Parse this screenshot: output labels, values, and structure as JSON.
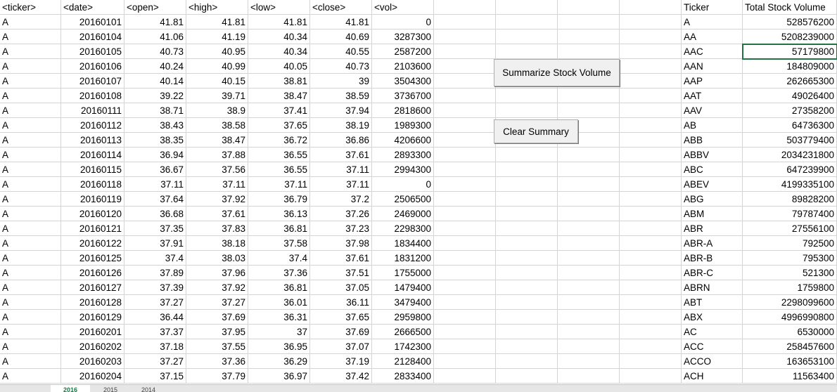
{
  "headers": [
    "<ticker>",
    "<date>",
    "<open>",
    "<high>",
    "<low>",
    "<close>",
    "<vol>"
  ],
  "summary_headers": [
    "Ticker",
    "Total Stock Volume"
  ],
  "buttons": {
    "summarize": "Summarize Stock Volume",
    "clear": "Clear Summary"
  },
  "rows": [
    [
      "A",
      "20160101",
      "41.81",
      "41.81",
      "41.81",
      "41.81",
      "0"
    ],
    [
      "A",
      "20160104",
      "41.06",
      "41.19",
      "40.34",
      "40.69",
      "3287300"
    ],
    [
      "A",
      "20160105",
      "40.73",
      "40.95",
      "40.34",
      "40.55",
      "2587200"
    ],
    [
      "A",
      "20160106",
      "40.24",
      "40.99",
      "40.05",
      "40.73",
      "2103600"
    ],
    [
      "A",
      "20160107",
      "40.14",
      "40.15",
      "38.81",
      "39",
      "3504300"
    ],
    [
      "A",
      "20160108",
      "39.22",
      "39.71",
      "38.47",
      "38.59",
      "3736700"
    ],
    [
      "A",
      "20160111",
      "38.71",
      "38.9",
      "37.41",
      "37.94",
      "2818600"
    ],
    [
      "A",
      "20160112",
      "38.43",
      "38.58",
      "37.65",
      "38.19",
      "1989300"
    ],
    [
      "A",
      "20160113",
      "38.35",
      "38.47",
      "36.72",
      "36.86",
      "4206600"
    ],
    [
      "A",
      "20160114",
      "36.94",
      "37.88",
      "36.55",
      "37.61",
      "2893300"
    ],
    [
      "A",
      "20160115",
      "36.67",
      "37.56",
      "36.55",
      "37.11",
      "2994300"
    ],
    [
      "A",
      "20160118",
      "37.11",
      "37.11",
      "37.11",
      "37.11",
      "0"
    ],
    [
      "A",
      "20160119",
      "37.64",
      "37.92",
      "36.79",
      "37.2",
      "2506500"
    ],
    [
      "A",
      "20160120",
      "36.68",
      "37.61",
      "36.13",
      "37.26",
      "2469000"
    ],
    [
      "A",
      "20160121",
      "37.35",
      "37.83",
      "36.81",
      "37.23",
      "2298300"
    ],
    [
      "A",
      "20160122",
      "37.91",
      "38.18",
      "37.58",
      "37.98",
      "1834400"
    ],
    [
      "A",
      "20160125",
      "37.4",
      "38.03",
      "37.4",
      "37.61",
      "1831200"
    ],
    [
      "A",
      "20160126",
      "37.89",
      "37.96",
      "37.36",
      "37.51",
      "1755000"
    ],
    [
      "A",
      "20160127",
      "37.39",
      "37.92",
      "36.81",
      "37.05",
      "1479400"
    ],
    [
      "A",
      "20160128",
      "37.27",
      "37.27",
      "36.01",
      "36.11",
      "3479400"
    ],
    [
      "A",
      "20160129",
      "36.44",
      "37.69",
      "36.31",
      "37.65",
      "2959800"
    ],
    [
      "A",
      "20160201",
      "37.37",
      "37.95",
      "37",
      "37.69",
      "2666500"
    ],
    [
      "A",
      "20160202",
      "37.18",
      "37.55",
      "36.95",
      "37.07",
      "1742300"
    ],
    [
      "A",
      "20160203",
      "37.27",
      "37.36",
      "36.29",
      "37.19",
      "2128400"
    ],
    [
      "A",
      "20160204",
      "37.15",
      "37.79",
      "36.97",
      "37.42",
      "2833400"
    ]
  ],
  "summary": [
    [
      "A",
      "528576200"
    ],
    [
      "AA",
      "5208239000"
    ],
    [
      "AAC",
      "57179800"
    ],
    [
      "AAN",
      "184809000"
    ],
    [
      "AAP",
      "262665300"
    ],
    [
      "AAT",
      "49026400"
    ],
    [
      "AAV",
      "27358200"
    ],
    [
      "AB",
      "64736300"
    ],
    [
      "ABB",
      "503779400"
    ],
    [
      "ABBV",
      "2034231800"
    ],
    [
      "ABC",
      "647239900"
    ],
    [
      "ABEV",
      "4199335100"
    ],
    [
      "ABG",
      "89828200"
    ],
    [
      "ABM",
      "79787400"
    ],
    [
      "ABR",
      "27556100"
    ],
    [
      "ABR-A",
      "792500"
    ],
    [
      "ABR-B",
      "795300"
    ],
    [
      "ABR-C",
      "521300"
    ],
    [
      "ABRN",
      "1759800"
    ],
    [
      "ABT",
      "2298099600"
    ],
    [
      "ABX",
      "4996990800"
    ],
    [
      "AC",
      "6530000"
    ],
    [
      "ACC",
      "258457600"
    ],
    [
      "ACCO",
      "163653100"
    ],
    [
      "ACH",
      "11563400"
    ]
  ],
  "sheet_tabs": [
    "2016",
    "2015",
    "2014"
  ],
  "active_tab": "2016"
}
